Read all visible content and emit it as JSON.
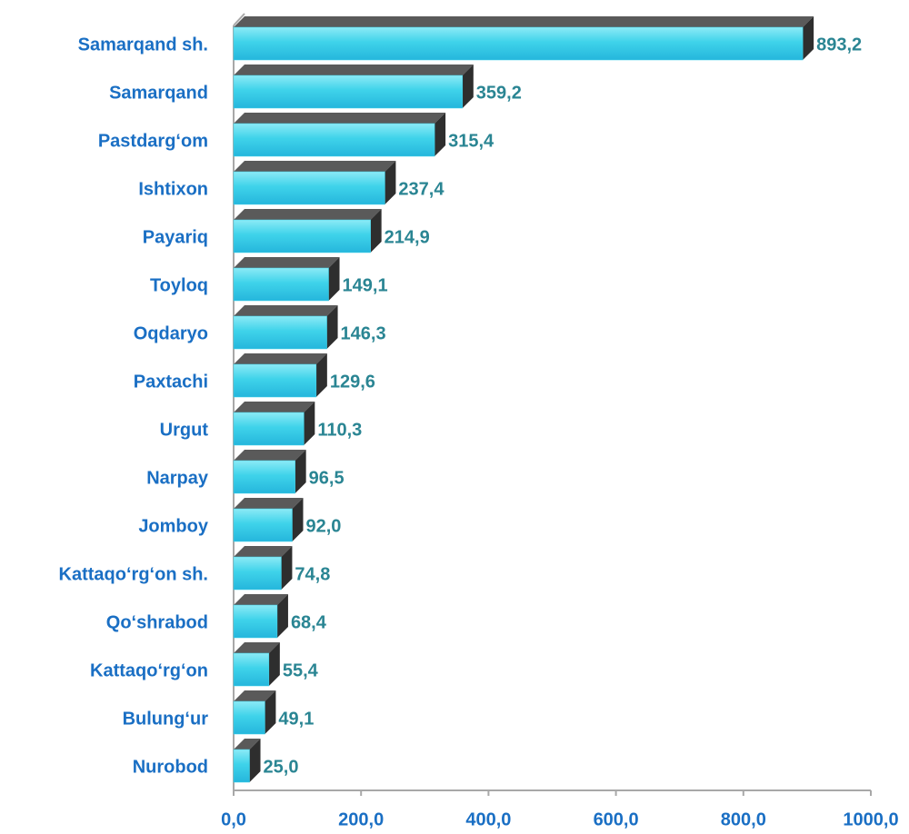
{
  "chart_data": {
    "type": "bar",
    "orientation": "horizontal",
    "categories": [
      "Samarqand sh.",
      "Samarqand",
      "Pastdarg‘om",
      "Ishtixon",
      "Payariq",
      "Toyloq",
      "Oqdaryo",
      "Paxtachi",
      "Urgut",
      "Narpay",
      "Jomboy",
      "Kattaqo‘rg‘on sh.",
      "Qo‘shrabod",
      "Kattaqo‘rg‘on",
      "Bulung‘ur",
      "Nurobod"
    ],
    "values": [
      893.2,
      359.2,
      315.4,
      237.4,
      214.9,
      149.1,
      146.3,
      129.6,
      110.3,
      96.5,
      92.0,
      74.8,
      68.4,
      55.4,
      49.1,
      25.0
    ],
    "value_labels": [
      "893,2",
      "359,2",
      "315,4",
      "237,4",
      "214,9",
      "149,1",
      "146,3",
      "129,6",
      "110,3",
      "96,5",
      "92,0",
      "74,8",
      "68,4",
      "55,4",
      "49,1",
      "25,0"
    ],
    "color": "#3fd3ea",
    "xlim": [
      0,
      1000
    ],
    "xticks": [
      {
        "value": 0,
        "label": "0,0"
      },
      {
        "value": 200,
        "label": "200,0"
      },
      {
        "value": 400,
        "label": "400,0"
      },
      {
        "value": 600,
        "label": "600,0"
      },
      {
        "value": 800,
        "label": "800,0"
      },
      {
        "value": 1000,
        "label": "1000,0"
      }
    ]
  }
}
